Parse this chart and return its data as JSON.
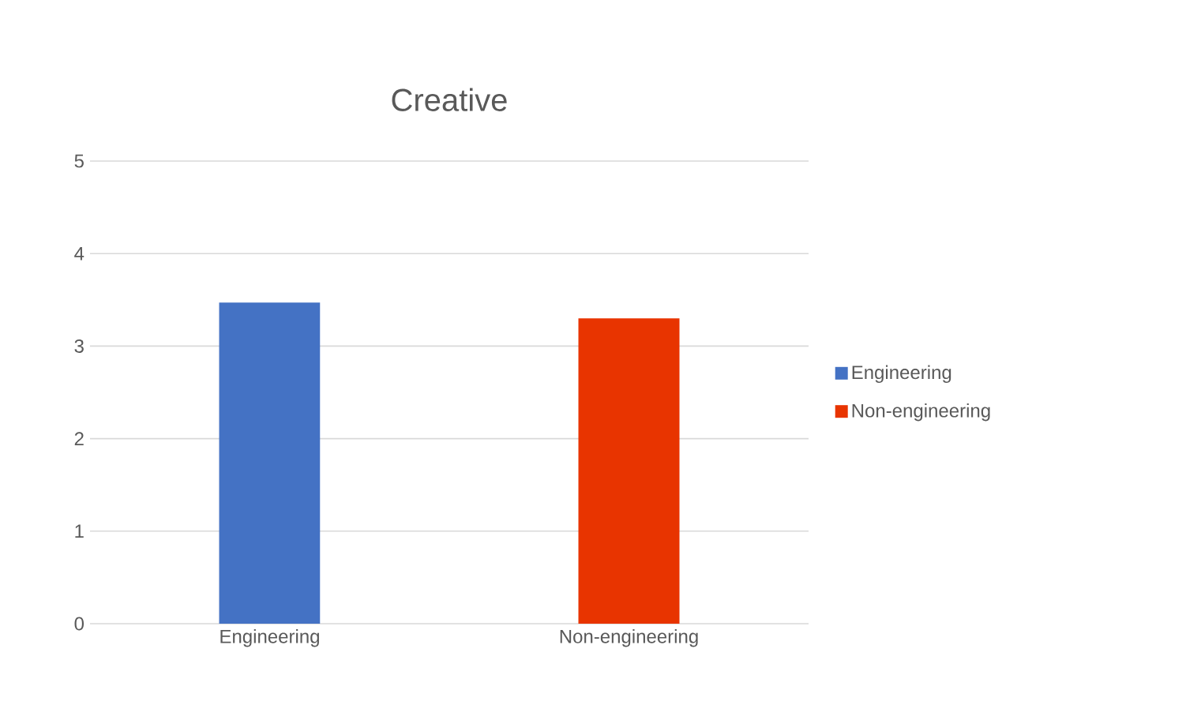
{
  "chart_data": {
    "type": "bar",
    "title": "Creative",
    "categories": [
      "Engineering",
      "Non-engineering"
    ],
    "series": [
      {
        "name": "Engineering",
        "color": "#4472c4",
        "values": [
          3.47,
          null
        ]
      },
      {
        "name": "Non-engineering",
        "color": "#e83400",
        "values": [
          null,
          3.3
        ]
      }
    ],
    "ylim": [
      0,
      5
    ],
    "yticks": [
      0,
      1,
      2,
      3,
      4,
      5
    ],
    "grid": "y",
    "legend": "right"
  }
}
